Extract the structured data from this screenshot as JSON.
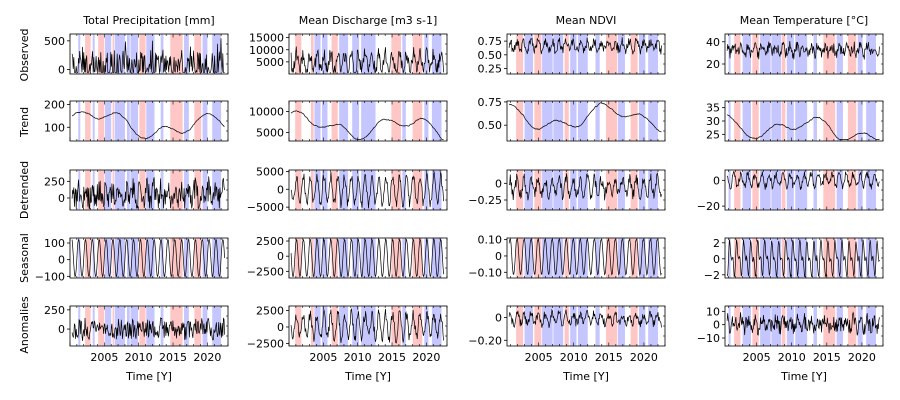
{
  "figure": {
    "row_labels": [
      "Observed",
      "Trend",
      "Detrended",
      "Seasonal",
      "Anomalies"
    ],
    "xlabel": "Time [Y]",
    "x_ticks": [
      "2005",
      "2010",
      "2015",
      "2020"
    ],
    "colors": {
      "wet_band": "#c6c6ff",
      "dry_band": "#ffc6c6",
      "line": "#000000"
    }
  },
  "chart_data": [
    {
      "type": "line",
      "id": "precip",
      "title": "Total Precipitation [mm]",
      "x_range": [
        2000.0,
        2023.0
      ],
      "bands": [
        {
          "start": 2001.2,
          "end": 2001.5,
          "kind": "wet"
        },
        {
          "start": 2002.2,
          "end": 2003.0,
          "kind": "dry"
        },
        {
          "start": 2003.3,
          "end": 2003.6,
          "kind": "wet"
        },
        {
          "start": 2004.1,
          "end": 2005.0,
          "kind": "dry"
        },
        {
          "start": 2005.1,
          "end": 2006.0,
          "kind": "wet"
        },
        {
          "start": 2006.2,
          "end": 2006.4,
          "kind": "dry"
        },
        {
          "start": 2006.5,
          "end": 2008.0,
          "kind": "wet"
        },
        {
          "start": 2008.3,
          "end": 2008.7,
          "kind": "wet"
        },
        {
          "start": 2008.8,
          "end": 2009.9,
          "kind": "wet"
        },
        {
          "start": 2010.1,
          "end": 2011.0,
          "kind": "dry"
        },
        {
          "start": 2011.1,
          "end": 2012.3,
          "kind": "wet"
        },
        {
          "start": 2013.2,
          "end": 2013.6,
          "kind": "wet"
        },
        {
          "start": 2014.6,
          "end": 2016.4,
          "kind": "dry"
        },
        {
          "start": 2016.6,
          "end": 2017.3,
          "kind": "wet"
        },
        {
          "start": 2018.1,
          "end": 2019.1,
          "kind": "dry"
        },
        {
          "start": 2019.3,
          "end": 2020.0,
          "kind": "wet"
        },
        {
          "start": 2020.7,
          "end": 2022.0,
          "kind": "wet"
        }
      ],
      "rows": [
        {
          "ylim": [
            -80,
            620
          ],
          "yticks": [
            0,
            500
          ],
          "amp": 0.25,
          "freq": 0.0,
          "noise": 0.45,
          "base": 0.15,
          "spiky": true
        },
        {
          "ylim": [
            40,
            215
          ],
          "yticks": [
            100,
            200
          ],
          "amp": 0.0,
          "freq": 0.0,
          "noise": 0.06,
          "base": 0.5,
          "trend": true
        },
        {
          "ylim": [
            -180,
            420
          ],
          "yticks": [
            0,
            250
          ],
          "amp": 0.15,
          "freq": 1.0,
          "noise": 0.3,
          "base": 0.4
        },
        {
          "ylim": [
            -110,
            130
          ],
          "yticks": [
            -100,
            0,
            100
          ],
          "amp": 0.48,
          "freq": 1.0,
          "noise": 0.0,
          "base": 0.5
        },
        {
          "ylim": [
            -220,
            300
          ],
          "yticks": [
            0,
            250
          ],
          "amp": 0.05,
          "freq": 1.0,
          "noise": 0.25,
          "base": 0.42
        }
      ]
    },
    {
      "type": "line",
      "id": "discharge",
      "title": "Mean Discharge [m3 s-1]",
      "x_range": [
        2000.0,
        2023.0
      ],
      "bands": [
        {
          "start": 2000.9,
          "end": 2001.8,
          "kind": "dry"
        },
        {
          "start": 2003.2,
          "end": 2003.6,
          "kind": "dry"
        },
        {
          "start": 2003.7,
          "end": 2004.6,
          "kind": "wet"
        },
        {
          "start": 2004.8,
          "end": 2005.6,
          "kind": "wet"
        },
        {
          "start": 2006.2,
          "end": 2007.1,
          "kind": "dry"
        },
        {
          "start": 2007.3,
          "end": 2008.6,
          "kind": "wet"
        },
        {
          "start": 2009.2,
          "end": 2010.2,
          "kind": "wet"
        },
        {
          "start": 2010.5,
          "end": 2012.6,
          "kind": "wet"
        },
        {
          "start": 2014.9,
          "end": 2016.3,
          "kind": "dry"
        },
        {
          "start": 2016.5,
          "end": 2017.0,
          "kind": "wet"
        },
        {
          "start": 2018.0,
          "end": 2019.4,
          "kind": "dry"
        },
        {
          "start": 2019.7,
          "end": 2020.3,
          "kind": "wet"
        },
        {
          "start": 2020.8,
          "end": 2022.2,
          "kind": "wet"
        }
      ],
      "rows": [
        {
          "ylim": [
            0,
            16500
          ],
          "yticks": [
            5000,
            10000,
            15000
          ],
          "amp": 0.2,
          "freq": 1.0,
          "noise": 0.2,
          "base": 0.3
        },
        {
          "ylim": [
            3000,
            12500
          ],
          "yticks": [
            5000,
            10000
          ],
          "amp": 0.0,
          "freq": 0.0,
          "noise": 0.04,
          "base": 0.4,
          "trend": true
        },
        {
          "ylim": [
            -5800,
            5400
          ],
          "yticks": [
            -5000,
            0,
            5000
          ],
          "amp": 0.35,
          "freq": 1.0,
          "noise": 0.12,
          "base": 0.5
        },
        {
          "ylim": [
            -3600,
            3000
          ],
          "yticks": [
            -2500,
            0,
            2500
          ],
          "amp": 0.48,
          "freq": 1.0,
          "noise": 0.0,
          "base": 0.5
        },
        {
          "ylim": [
            -2900,
            3200
          ],
          "yticks": [
            -2500,
            0,
            2500
          ],
          "amp": 0.3,
          "freq": 1.0,
          "noise": 0.15,
          "base": 0.5
        }
      ]
    },
    {
      "type": "line",
      "id": "ndvi",
      "title": "Mean NDVI",
      "x_range": [
        2000.5,
        2023.0
      ],
      "bands": [
        {
          "start": 2001.8,
          "end": 2002.8,
          "kind": "dry"
        },
        {
          "start": 2003.0,
          "end": 2004.2,
          "kind": "wet"
        },
        {
          "start": 2004.4,
          "end": 2005.4,
          "kind": "dry"
        },
        {
          "start": 2005.5,
          "end": 2007.0,
          "kind": "wet"
        },
        {
          "start": 2007.1,
          "end": 2008.5,
          "kind": "wet"
        },
        {
          "start": 2008.7,
          "end": 2009.3,
          "kind": "dry"
        },
        {
          "start": 2009.5,
          "end": 2010.4,
          "kind": "wet"
        },
        {
          "start": 2010.6,
          "end": 2012.0,
          "kind": "wet"
        },
        {
          "start": 2013.1,
          "end": 2013.7,
          "kind": "wet"
        },
        {
          "start": 2014.6,
          "end": 2016.2,
          "kind": "dry"
        },
        {
          "start": 2016.3,
          "end": 2017.3,
          "kind": "wet"
        },
        {
          "start": 2018.1,
          "end": 2019.1,
          "kind": "dry"
        },
        {
          "start": 2019.3,
          "end": 2020.2,
          "kind": "wet"
        },
        {
          "start": 2020.6,
          "end": 2022.0,
          "kind": "wet"
        }
      ],
      "rows": [
        {
          "ylim": [
            0.15,
            0.88
          ],
          "yticks": [
            0.25,
            0.5,
            0.75
          ],
          "amp": 0.1,
          "freq": 1.0,
          "noise": 0.12,
          "base": 0.7
        },
        {
          "ylim": [
            0.33,
            0.76
          ],
          "yticks": [
            0.5,
            0.75
          ],
          "amp": 0.0,
          "freq": 0.0,
          "noise": 0.03,
          "base": 0.6,
          "trend": true
        },
        {
          "ylim": [
            -0.4,
            0.2
          ],
          "yticks": [
            -0.25,
            0.0
          ],
          "amp": 0.2,
          "freq": 1.0,
          "noise": 0.15,
          "base": 0.58
        },
        {
          "ylim": [
            -0.135,
            0.11
          ],
          "yticks": [
            -0.1,
            0.0,
            0.1
          ],
          "amp": 0.47,
          "freq": 1.0,
          "noise": 0.0,
          "base": 0.55
        },
        {
          "ylim": [
            -0.25,
            0.1
          ],
          "yticks": [
            -0.2,
            0.0
          ],
          "amp": 0.12,
          "freq": 1.0,
          "noise": 0.12,
          "base": 0.68
        }
      ]
    },
    {
      "type": "line",
      "id": "temp",
      "title": "Mean Temperature [°C]",
      "x_range": [
        2000.5,
        2023.0
      ],
      "bands": [
        {
          "start": 2001.0,
          "end": 2001.3,
          "kind": "wet"
        },
        {
          "start": 2001.8,
          "end": 2002.7,
          "kind": "dry"
        },
        {
          "start": 2003.0,
          "end": 2004.2,
          "kind": "wet"
        },
        {
          "start": 2004.4,
          "end": 2005.3,
          "kind": "dry"
        },
        {
          "start": 2005.5,
          "end": 2007.0,
          "kind": "wet"
        },
        {
          "start": 2007.1,
          "end": 2008.5,
          "kind": "wet"
        },
        {
          "start": 2008.6,
          "end": 2009.1,
          "kind": "dry"
        },
        {
          "start": 2009.3,
          "end": 2010.3,
          "kind": "wet"
        },
        {
          "start": 2010.5,
          "end": 2012.2,
          "kind": "wet"
        },
        {
          "start": 2013.1,
          "end": 2013.6,
          "kind": "wet"
        },
        {
          "start": 2014.5,
          "end": 2016.2,
          "kind": "dry"
        },
        {
          "start": 2016.4,
          "end": 2017.3,
          "kind": "wet"
        },
        {
          "start": 2018.0,
          "end": 2019.2,
          "kind": "dry"
        },
        {
          "start": 2019.4,
          "end": 2020.1,
          "kind": "wet"
        },
        {
          "start": 2020.6,
          "end": 2022.0,
          "kind": "wet"
        }
      ],
      "rows": [
        {
          "ylim": [
            11,
            47
          ],
          "yticks": [
            20,
            40
          ],
          "amp": 0.1,
          "freq": 1.0,
          "noise": 0.15,
          "base": 0.6
        },
        {
          "ylim": [
            22.5,
            37.5
          ],
          "yticks": [
            25,
            30,
            35
          ],
          "amp": 0.0,
          "freq": 0.0,
          "noise": 0.05,
          "base": 0.5,
          "trend": true
        },
        {
          "ylim": [
            -23,
            8
          ],
          "yticks": [
            -20,
            0
          ],
          "amp": 0.15,
          "freq": 1.0,
          "noise": 0.1,
          "base": 0.75
        },
        {
          "ylim": [
            -2.4,
            2.6
          ],
          "yticks": [
            -2,
            0,
            2
          ],
          "amp": 0.45,
          "freq": 2.0,
          "noise": 0.05,
          "base": 0.48
        },
        {
          "ylim": [
            -16,
            14
          ],
          "yticks": [
            -10,
            0,
            10
          ],
          "amp": 0.1,
          "freq": 1.0,
          "noise": 0.2,
          "base": 0.55
        }
      ]
    }
  ]
}
